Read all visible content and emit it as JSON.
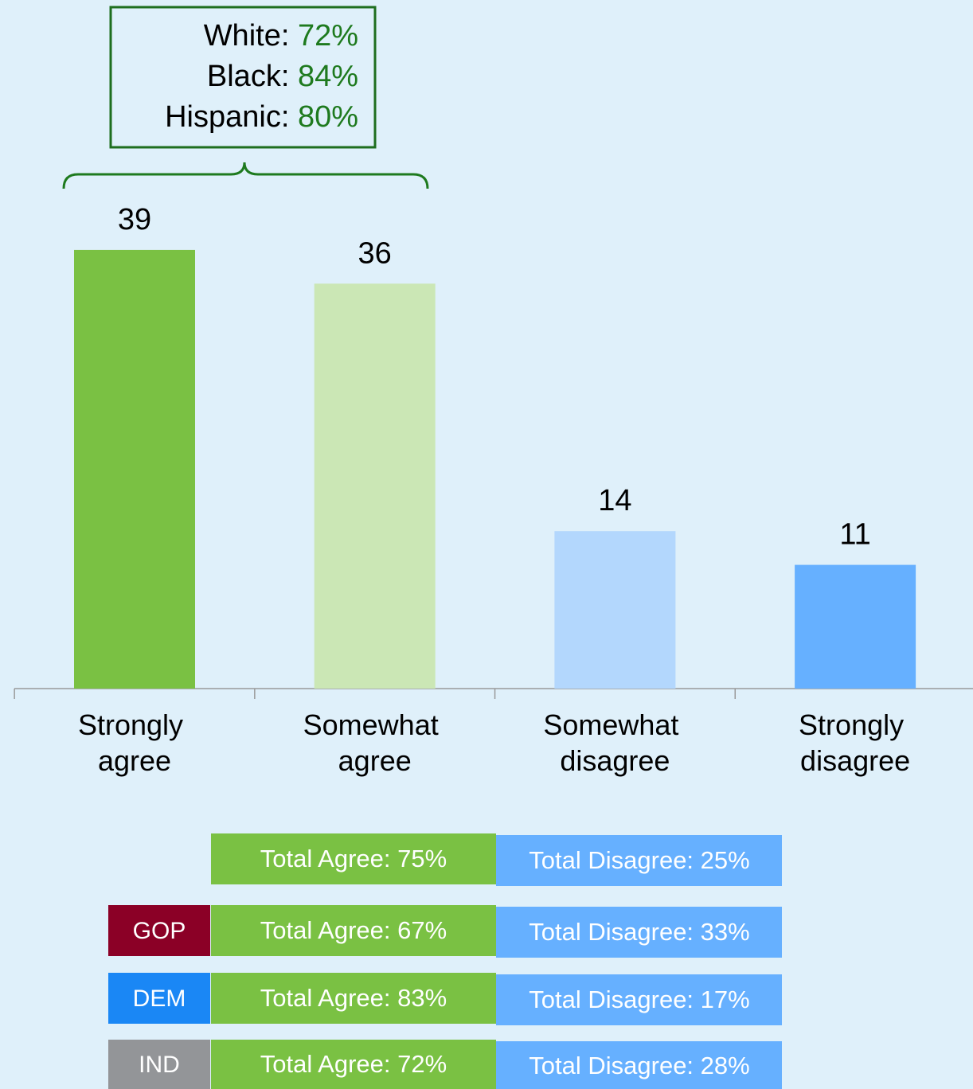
{
  "chart_data": {
    "type": "bar",
    "categories": [
      "Strongly agree",
      "Somewhat agree",
      "Somewhat disagree",
      "Strongly disagree"
    ],
    "values": [
      39,
      36,
      14,
      11
    ],
    "colors": [
      "#7ac143",
      "#cbe7b5",
      "#b3d7fd",
      "#66b0ff"
    ],
    "annotation": {
      "items": [
        {
          "label": "White:",
          "value": "72%"
        },
        {
          "label": "Black:",
          "value": "84%"
        },
        {
          "label": "Hispanic:",
          "value": "80%"
        }
      ],
      "color": "#1e7a1e"
    },
    "summary": {
      "agree_color": "#7ac143",
      "disagree_color": "#66b0ff",
      "rows": [
        {
          "agree": "Total Agree: 75%",
          "disagree": "Total Disagree: 25%"
        },
        {
          "party": "GOP",
          "party_color": "#8b0026",
          "agree": "Total Agree: 67%",
          "disagree": "Total Disagree: 33%"
        },
        {
          "party": "DEM",
          "party_color": "#1a87f5",
          "agree": "Total Agree: 83%",
          "disagree": "Total Disagree: 17%"
        },
        {
          "party": "IND",
          "party_color": "#939598",
          "agree": "Total Agree: 72%",
          "disagree": "Total Disagree: 28%"
        }
      ]
    }
  }
}
